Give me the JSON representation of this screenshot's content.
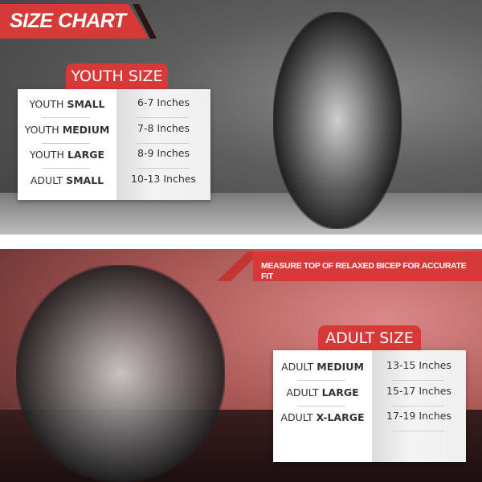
{
  "title": "SIZE CHART",
  "instruction": "MEASURE TOP OF RELAXED BICEP FOR ACCURATE FIT",
  "youth": {
    "heading": "YOUTH SIZE",
    "rows": [
      {
        "prefix": "YOUTH",
        "size": "SMALL",
        "range": "6-7 Inches"
      },
      {
        "prefix": "YOUTH",
        "size": "MEDIUM",
        "range": "7-8 Inches"
      },
      {
        "prefix": "YOUTH",
        "size": "LARGE",
        "range": "8-9 Inches"
      },
      {
        "prefix": "ADULT",
        "size": "SMALL",
        "range": "10-13 Inches"
      }
    ]
  },
  "adult": {
    "heading": "ADULT SIZE",
    "rows": [
      {
        "prefix": "ADULT",
        "size": "MEDIUM",
        "range": "13-15 Inches"
      },
      {
        "prefix": "ADULT",
        "size": "LARGE",
        "range": "15-17 Inches"
      },
      {
        "prefix": "ADULT",
        "size": "X-LARGE",
        "range": "17-19 Inches"
      }
    ]
  },
  "colors": {
    "accent": "#d63a38"
  }
}
